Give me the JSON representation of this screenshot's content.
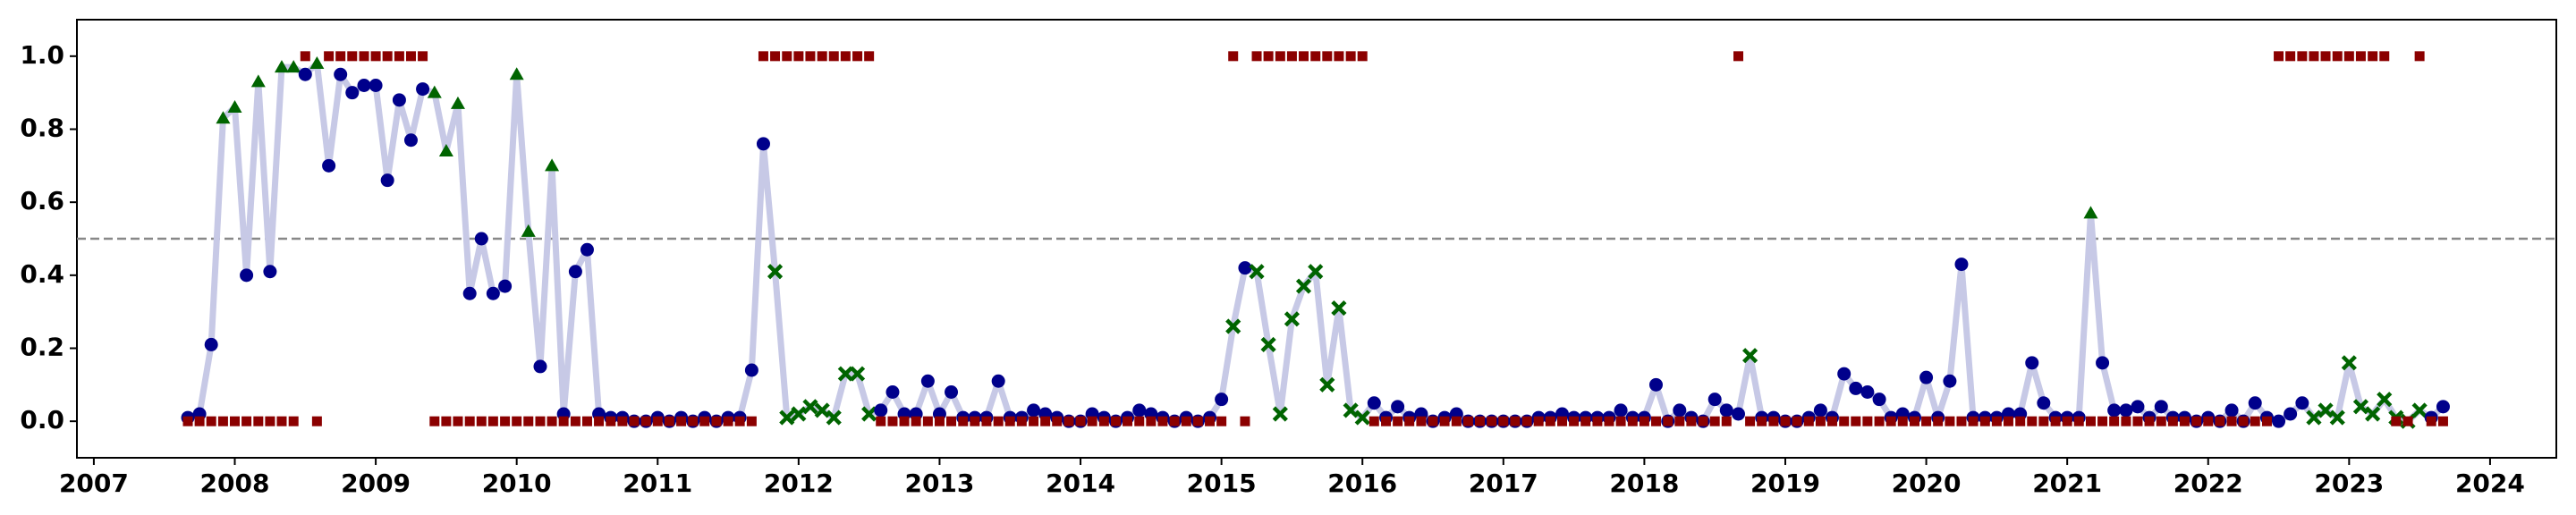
{
  "chart_data": {
    "type": "line",
    "xlim": [
      2006.88,
      2024.47
    ],
    "ylim": [
      -0.1,
      1.1
    ],
    "xticks": [
      2007,
      2008,
      2009,
      2010,
      2011,
      2012,
      2013,
      2014,
      2015,
      2016,
      2017,
      2018,
      2019,
      2020,
      2021,
      2022,
      2023,
      2024
    ],
    "yticks": [
      {
        "value": 0,
        "label": "0.0"
      },
      {
        "value": 0.2,
        "label": "0.2"
      },
      {
        "value": 0.4,
        "label": "0.4"
      },
      {
        "value": 0.6,
        "label": "0.6"
      },
      {
        "value": 0.8,
        "label": "0.8"
      },
      {
        "value": 1,
        "label": "1.0"
      }
    ],
    "hline": 0.5,
    "x": [
      2007.667,
      2007.75,
      2007.833,
      2007.917,
      2008,
      2008.083,
      2008.167,
      2008.25,
      2008.333,
      2008.417,
      2008.5,
      2008.583,
      2008.667,
      2008.75,
      2008.833,
      2008.917,
      2009,
      2009.083,
      2009.167,
      2009.25,
      2009.333,
      2009.417,
      2009.5,
      2009.583,
      2009.667,
      2009.75,
      2009.833,
      2009.917,
      2010,
      2010.083,
      2010.167,
      2010.25,
      2010.333,
      2010.417,
      2010.5,
      2010.583,
      2010.667,
      2010.75,
      2010.833,
      2010.917,
      2011,
      2011.083,
      2011.167,
      2011.25,
      2011.333,
      2011.417,
      2011.5,
      2011.583,
      2011.667,
      2011.75,
      2011.833,
      2011.917,
      2012,
      2012.083,
      2012.167,
      2012.25,
      2012.333,
      2012.417,
      2012.5,
      2012.583,
      2012.667,
      2012.75,
      2012.833,
      2012.917,
      2013,
      2013.083,
      2013.167,
      2013.25,
      2013.333,
      2013.417,
      2013.5,
      2013.583,
      2013.667,
      2013.75,
      2013.833,
      2013.917,
      2014,
      2014.083,
      2014.167,
      2014.25,
      2014.333,
      2014.417,
      2014.5,
      2014.583,
      2014.667,
      2014.75,
      2014.833,
      2014.917,
      2015,
      2015.083,
      2015.167,
      2015.25,
      2015.333,
      2015.417,
      2015.5,
      2015.583,
      2015.667,
      2015.75,
      2015.833,
      2015.917,
      2016,
      2016.083,
      2016.167,
      2016.25,
      2016.333,
      2016.417,
      2016.5,
      2016.583,
      2016.667,
      2016.75,
      2016.833,
      2016.917,
      2017,
      2017.083,
      2017.167,
      2017.25,
      2017.333,
      2017.417,
      2017.5,
      2017.583,
      2017.667,
      2017.75,
      2017.833,
      2017.917,
      2018,
      2018.083,
      2018.167,
      2018.25,
      2018.333,
      2018.417,
      2018.5,
      2018.583,
      2018.667,
      2018.75,
      2018.833,
      2018.917,
      2019,
      2019.083,
      2019.167,
      2019.25,
      2019.333,
      2019.417,
      2019.5,
      2019.583,
      2019.667,
      2019.75,
      2019.833,
      2019.917,
      2020,
      2020.083,
      2020.167,
      2020.25,
      2020.333,
      2020.417,
      2020.5,
      2020.583,
      2020.667,
      2020.75,
      2020.833,
      2020.917,
      2021,
      2021.083,
      2021.167,
      2021.25,
      2021.333,
      2021.417,
      2021.5,
      2021.583,
      2021.667,
      2021.75,
      2021.833,
      2021.917,
      2022,
      2022.083,
      2022.167,
      2022.25,
      2022.333,
      2022.417,
      2022.5,
      2022.583,
      2022.667,
      2022.75,
      2022.833,
      2022.917,
      2023,
      2023.083,
      2023.167,
      2023.25,
      2023.333,
      2023.417,
      2023.5,
      2023.583,
      2023.667
    ],
    "series": [
      {
        "kind": "line",
        "color": "#c7c9e6",
        "marker_colors": {
          "o": "#00008b",
          "^": "#006400",
          "x": "#006400"
        },
        "values": [
          0.01,
          0.02,
          0.21,
          0.83,
          0.86,
          0.4,
          0.93,
          0.41,
          0.97,
          0.97,
          0.95,
          0.98,
          0.7,
          0.95,
          0.9,
          0.92,
          0.92,
          0.66,
          0.88,
          0.77,
          0.91,
          0.9,
          0.74,
          0.87,
          0.35,
          0.5,
          0.35,
          0.37,
          0.95,
          0.52,
          0.15,
          0.7,
          0.02,
          0.41,
          0.47,
          0.02,
          0.01,
          0.01,
          0,
          0,
          0.01,
          0,
          0.01,
          0,
          0.01,
          0,
          0.01,
          0.01,
          0.14,
          0.76,
          0.41,
          0.01,
          0.02,
          0.04,
          0.03,
          0.01,
          0.13,
          0.13,
          0.02,
          0.03,
          0.08,
          0.02,
          0.02,
          0.11,
          0.02,
          0.08,
          0.01,
          0.01,
          0.01,
          0.11,
          0.01,
          0.01,
          0.03,
          0.02,
          0.01,
          0,
          0,
          0.02,
          0.01,
          0,
          0.01,
          0.03,
          0.02,
          0.01,
          0,
          0.01,
          0,
          0.01,
          0.06,
          0.26,
          0.42,
          0.41,
          0.21,
          0.02,
          0.28,
          0.37,
          0.41,
          0.1,
          0.31,
          0.03,
          0.01,
          0.05,
          0.01,
          0.04,
          0.01,
          0.02,
          0,
          0.01,
          0.02,
          0,
          0,
          0,
          0,
          0,
          0,
          0.01,
          0.01,
          0.02,
          0.01,
          0.01,
          0.01,
          0.01,
          0.03,
          0.01,
          0.01,
          0.1,
          0,
          0.03,
          0.01,
          0,
          0.06,
          0.03,
          0.02,
          0.18,
          0.01,
          0.01,
          0,
          0,
          0.01,
          0.03,
          0.01,
          0.13,
          0.09,
          0.08,
          0.06,
          0.01,
          0.02,
          0.01,
          0.12,
          0.01,
          0.11,
          0.43,
          0.01,
          0.01,
          0.01,
          0.02,
          0.02,
          0.16,
          0.05,
          0.01,
          0.01,
          0.01,
          0.57,
          0.16,
          0.03,
          0.03,
          0.04,
          0.01,
          0.04,
          0.01,
          0.01,
          0,
          0.01,
          0,
          0.03,
          0,
          0.05,
          0.01,
          0,
          0.02,
          0.05,
          0.01,
          0.03,
          0.01,
          0.16,
          0.04,
          0.02,
          0.06,
          0.01,
          0,
          0.03,
          0.01,
          0.04
        ],
        "markers": [
          "o",
          "o",
          "o",
          "^",
          "^",
          "o",
          "^",
          "o",
          "^",
          "^",
          "o",
          "^",
          "o",
          "o",
          "o",
          "o",
          "o",
          "o",
          "o",
          "o",
          "o",
          "^",
          "^",
          "^",
          "o",
          "o",
          "o",
          "o",
          "^",
          "^",
          "o",
          "^",
          "o",
          "o",
          "o",
          "o",
          "o",
          "o",
          "o",
          "o",
          "o",
          "o",
          "o",
          "o",
          "o",
          "o",
          "o",
          "o",
          "o",
          "o",
          "x",
          "x",
          "x",
          "x",
          "x",
          "x",
          "x",
          "x",
          "x",
          "o",
          "o",
          "o",
          "o",
          "o",
          "o",
          "o",
          "o",
          "o",
          "o",
          "o",
          "o",
          "o",
          "o",
          "o",
          "o",
          "o",
          "o",
          "o",
          "o",
          "o",
          "o",
          "o",
          "o",
          "o",
          "o",
          "o",
          "o",
          "o",
          "o",
          "x",
          "o",
          "x",
          "x",
          "x",
          "x",
          "x",
          "x",
          "x",
          "x",
          "x",
          "x",
          "o",
          "o",
          "o",
          "o",
          "o",
          "o",
          "o",
          "o",
          "o",
          "o",
          "o",
          "o",
          "o",
          "o",
          "o",
          "o",
          "o",
          "o",
          "o",
          "o",
          "o",
          "o",
          "o",
          "o",
          "o",
          "o",
          "o",
          "o",
          "o",
          "o",
          "o",
          "o",
          "x",
          "o",
          "o",
          "o",
          "o",
          "o",
          "o",
          "o",
          "o",
          "o",
          "o",
          "o",
          "o",
          "o",
          "o",
          "o",
          "o",
          "o",
          "o",
          "o",
          "o",
          "o",
          "o",
          "o",
          "o",
          "o",
          "o",
          "o",
          "o",
          "^",
          "o",
          "o",
          "o",
          "o",
          "o",
          "o",
          "o",
          "o",
          "o",
          "o",
          "o",
          "o",
          "o",
          "o",
          "o",
          "o",
          "o",
          "o",
          "x",
          "x",
          "x",
          "x",
          "x",
          "x",
          "x",
          "x",
          "x",
          "x",
          "o",
          "o"
        ]
      },
      {
        "kind": "squares",
        "color": "#8b0000",
        "values": [
          0,
          0,
          0,
          0,
          0,
          0,
          0,
          0,
          0,
          0,
          1,
          0,
          1,
          1,
          1,
          1,
          1,
          1,
          1,
          1,
          1,
          0,
          0,
          0,
          0,
          0,
          0,
          0,
          0,
          0,
          0,
          0,
          0,
          0,
          0,
          0,
          0,
          0,
          0,
          0,
          0,
          0,
          0,
          0,
          0,
          0,
          0,
          0,
          0,
          1,
          1,
          1,
          1,
          1,
          1,
          1,
          1,
          1,
          1,
          0,
          0,
          0,
          0,
          0,
          0,
          0,
          0,
          0,
          0,
          0,
          0,
          0,
          0,
          0,
          0,
          0,
          0,
          0,
          0,
          0,
          0,
          0,
          0,
          0,
          0,
          0,
          0,
          0,
          0,
          1,
          0,
          1,
          1,
          1,
          1,
          1,
          1,
          1,
          1,
          1,
          1,
          0,
          0,
          0,
          0,
          0,
          0,
          0,
          0,
          0,
          0,
          0,
          0,
          0,
          0,
          0,
          0,
          0,
          0,
          0,
          0,
          0,
          0,
          0,
          0,
          0,
          0,
          0,
          0,
          0,
          0,
          0,
          1,
          0,
          0,
          0,
          0,
          0,
          0,
          0,
          0,
          0,
          0,
          0,
          0,
          0,
          0,
          0,
          0,
          0,
          0,
          0,
          0,
          0,
          0,
          0,
          0,
          0,
          0,
          0,
          0,
          0,
          0,
          0,
          0,
          0,
          0,
          0,
          0,
          0,
          0,
          0,
          0,
          0,
          0,
          0,
          0,
          0,
          1,
          1,
          1,
          1,
          1,
          1,
          1,
          1,
          1,
          1,
          0,
          0,
          1,
          0,
          0
        ]
      }
    ]
  }
}
